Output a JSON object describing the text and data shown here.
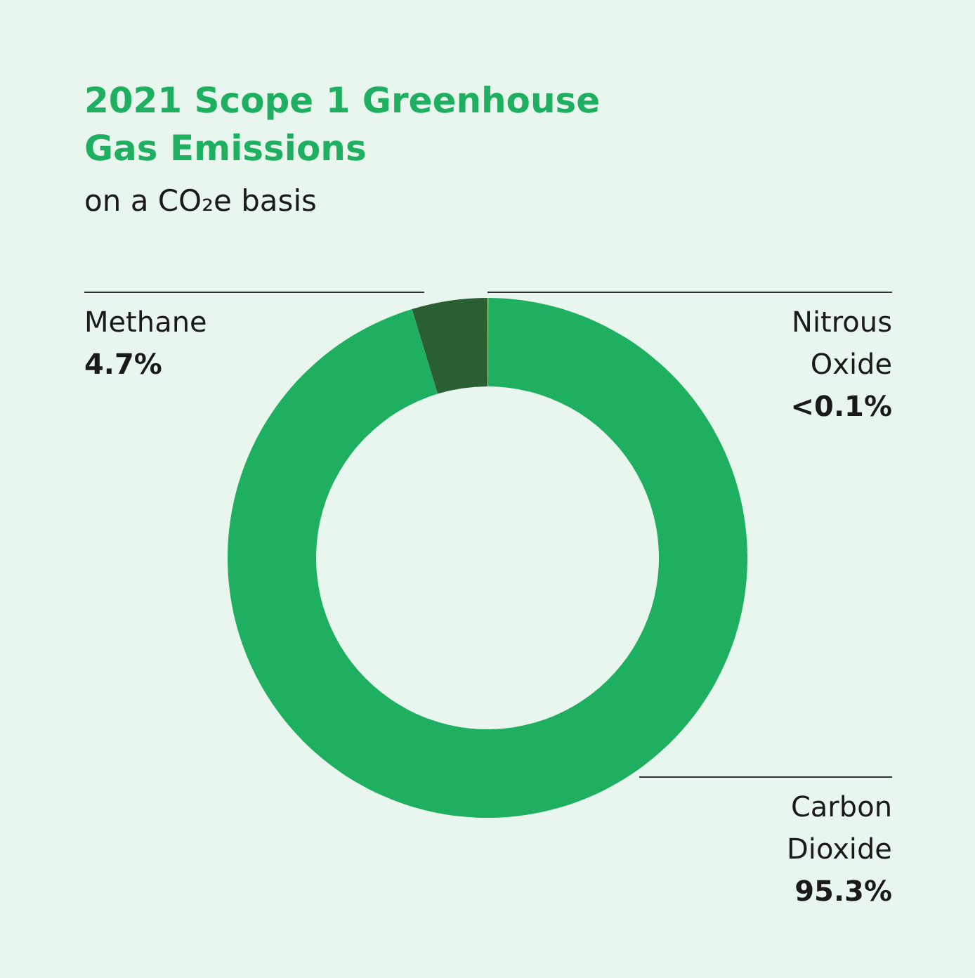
{
  "chart_data": {
    "type": "donut",
    "title": "2021 Scope 1 Greenhouse Gas Emissions",
    "subtitle": "on a CO₂e basis",
    "categories": [
      "Nitrous Oxide",
      "Carbon Dioxide",
      "Methane"
    ],
    "values": [
      0.05,
      95.3,
      4.7
    ],
    "value_labels": [
      "<0.1%",
      "95.3%",
      "4.7%"
    ],
    "colors": [
      "#b8e986",
      "#1eb060",
      "#2a5e33"
    ]
  }
}
